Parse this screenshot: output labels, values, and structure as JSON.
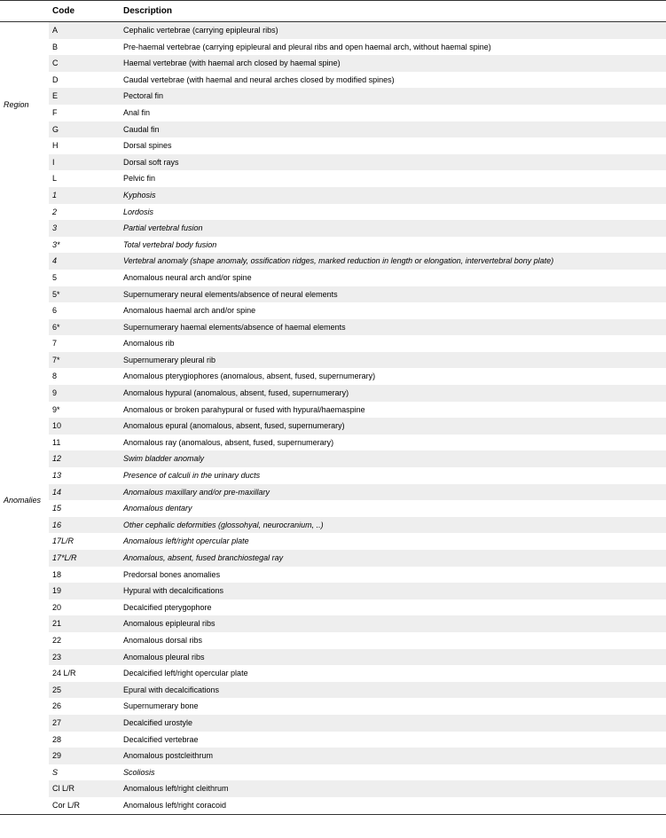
{
  "headers": {
    "group": "",
    "code": "Code",
    "desc": "Description"
  },
  "groups": [
    {
      "label": "Region",
      "rows": [
        {
          "code": "A",
          "desc": "Cephalic vertebrae (carrying epipleural ribs)",
          "italic": false
        },
        {
          "code": "B",
          "desc": "Pre-haemal vertebrae (carrying epipleural and pleural ribs and open haemal arch, without haemal spine)",
          "italic": false
        },
        {
          "code": "C",
          "desc": "Haemal vertebrae (with haemal arch closed by haemal spine)",
          "italic": false
        },
        {
          "code": "D",
          "desc": "Caudal vertebrae (with haemal and neural arches closed by modified spines)",
          "italic": false
        },
        {
          "code": "E",
          "desc": "Pectoral fin",
          "italic": false
        },
        {
          "code": "F",
          "desc": "Anal fin",
          "italic": false
        },
        {
          "code": "G",
          "desc": "Caudal fin",
          "italic": false
        },
        {
          "code": "H",
          "desc": "Dorsal spines",
          "italic": false
        },
        {
          "code": "I",
          "desc": "Dorsal soft rays",
          "italic": false
        },
        {
          "code": "L",
          "desc": "Pelvic fin",
          "italic": false
        }
      ]
    },
    {
      "label": "Anomalies",
      "rows": [
        {
          "code": "1",
          "desc": "Kyphosis",
          "italic": true
        },
        {
          "code": "2",
          "desc": "Lordosis",
          "italic": true
        },
        {
          "code": "3",
          "desc": "Partial vertebral fusion",
          "italic": true
        },
        {
          "code": "3*",
          "desc": "Total vertebral body fusion",
          "italic": true
        },
        {
          "code": "4",
          "desc": "Vertebral anomaly (shape anomaly, ossification ridges, marked reduction in length or elongation, intervertebral bony plate)",
          "italic": true
        },
        {
          "code": "5",
          "desc": "Anomalous neural arch and/or spine",
          "italic": false
        },
        {
          "code": "5*",
          "desc": "Supernumerary neural elements/absence of neural elements",
          "italic": false
        },
        {
          "code": "6",
          "desc": "Anomalous haemal arch and/or spine",
          "italic": false
        },
        {
          "code": "6*",
          "desc": "Supernumerary haemal elements/absence of haemal elements",
          "italic": false
        },
        {
          "code": "7",
          "desc": "Anomalous rib",
          "italic": false
        },
        {
          "code": "7*",
          "desc": "Supernumerary pleural rib",
          "italic": false
        },
        {
          "code": "8",
          "desc": "Anomalous pterygiophores (anomalous, absent, fused, supernumerary)",
          "italic": false
        },
        {
          "code": "9",
          "desc": "Anomalous hypural (anomalous, absent, fused, supernumerary)",
          "italic": false
        },
        {
          "code": "9*",
          "desc": "Anomalous or broken parahypural or fused with hypural/haemaspine",
          "italic": false
        },
        {
          "code": "10",
          "desc": "Anomalous epural (anomalous, absent, fused, supernumerary)",
          "italic": false
        },
        {
          "code": "11",
          "desc": "Anomalous ray (anomalous, absent, fused, supernumerary)",
          "italic": false
        },
        {
          "code": "12",
          "desc": "Swim bladder anomaly",
          "italic": true
        },
        {
          "code": "13",
          "desc": "Presence of calculi in the urinary ducts",
          "italic": true
        },
        {
          "code": "14",
          "desc": "Anomalous maxillary and/or pre-maxillary",
          "italic": true
        },
        {
          "code": "15",
          "desc": "Anomalous dentary",
          "italic": true
        },
        {
          "code": "16",
          "desc": "Other cephalic deformities (glossohyal, neurocranium, ..)",
          "italic": true
        },
        {
          "code": "17L/R",
          "desc": "Anomalous left/right opercular plate",
          "italic": true
        },
        {
          "code": "17*L/R",
          "desc": "Anomalous, absent, fused branchiostegal ray",
          "italic": true
        },
        {
          "code": "18",
          "desc": "Predorsal bones anomalies",
          "italic": false
        },
        {
          "code": "19",
          "desc": "Hypural with decalcifications",
          "italic": false
        },
        {
          "code": "20",
          "desc": "Decalcified pterygophore",
          "italic": false
        },
        {
          "code": "21",
          "desc": "Anomalous epipleural ribs",
          "italic": false
        },
        {
          "code": "22",
          "desc": "Anomalous dorsal ribs",
          "italic": false
        },
        {
          "code": "23",
          "desc": "Anomalous pleural ribs",
          "italic": false
        },
        {
          "code": "24 L/R",
          "desc": "Decalcified left/right opercular plate",
          "italic": false
        },
        {
          "code": "25",
          "desc": "Epural with decalcifications",
          "italic": false
        },
        {
          "code": "26",
          "desc": "Supernumerary bone",
          "italic": false
        },
        {
          "code": "27",
          "desc": "Decalcified urostyle",
          "italic": false
        },
        {
          "code": "28",
          "desc": "Decalcified vertebrae",
          "italic": false
        },
        {
          "code": "29",
          "desc": "Anomalous postcleithrum",
          "italic": false
        },
        {
          "code": "S",
          "desc": "Scoliosis",
          "italic": true
        },
        {
          "code": "Cl L/R",
          "desc": "Anomalous left/right cleithrum",
          "italic": false
        },
        {
          "code": "Cor L/R",
          "desc": "Anomalous left/right coracoid",
          "italic": false
        }
      ]
    }
  ]
}
